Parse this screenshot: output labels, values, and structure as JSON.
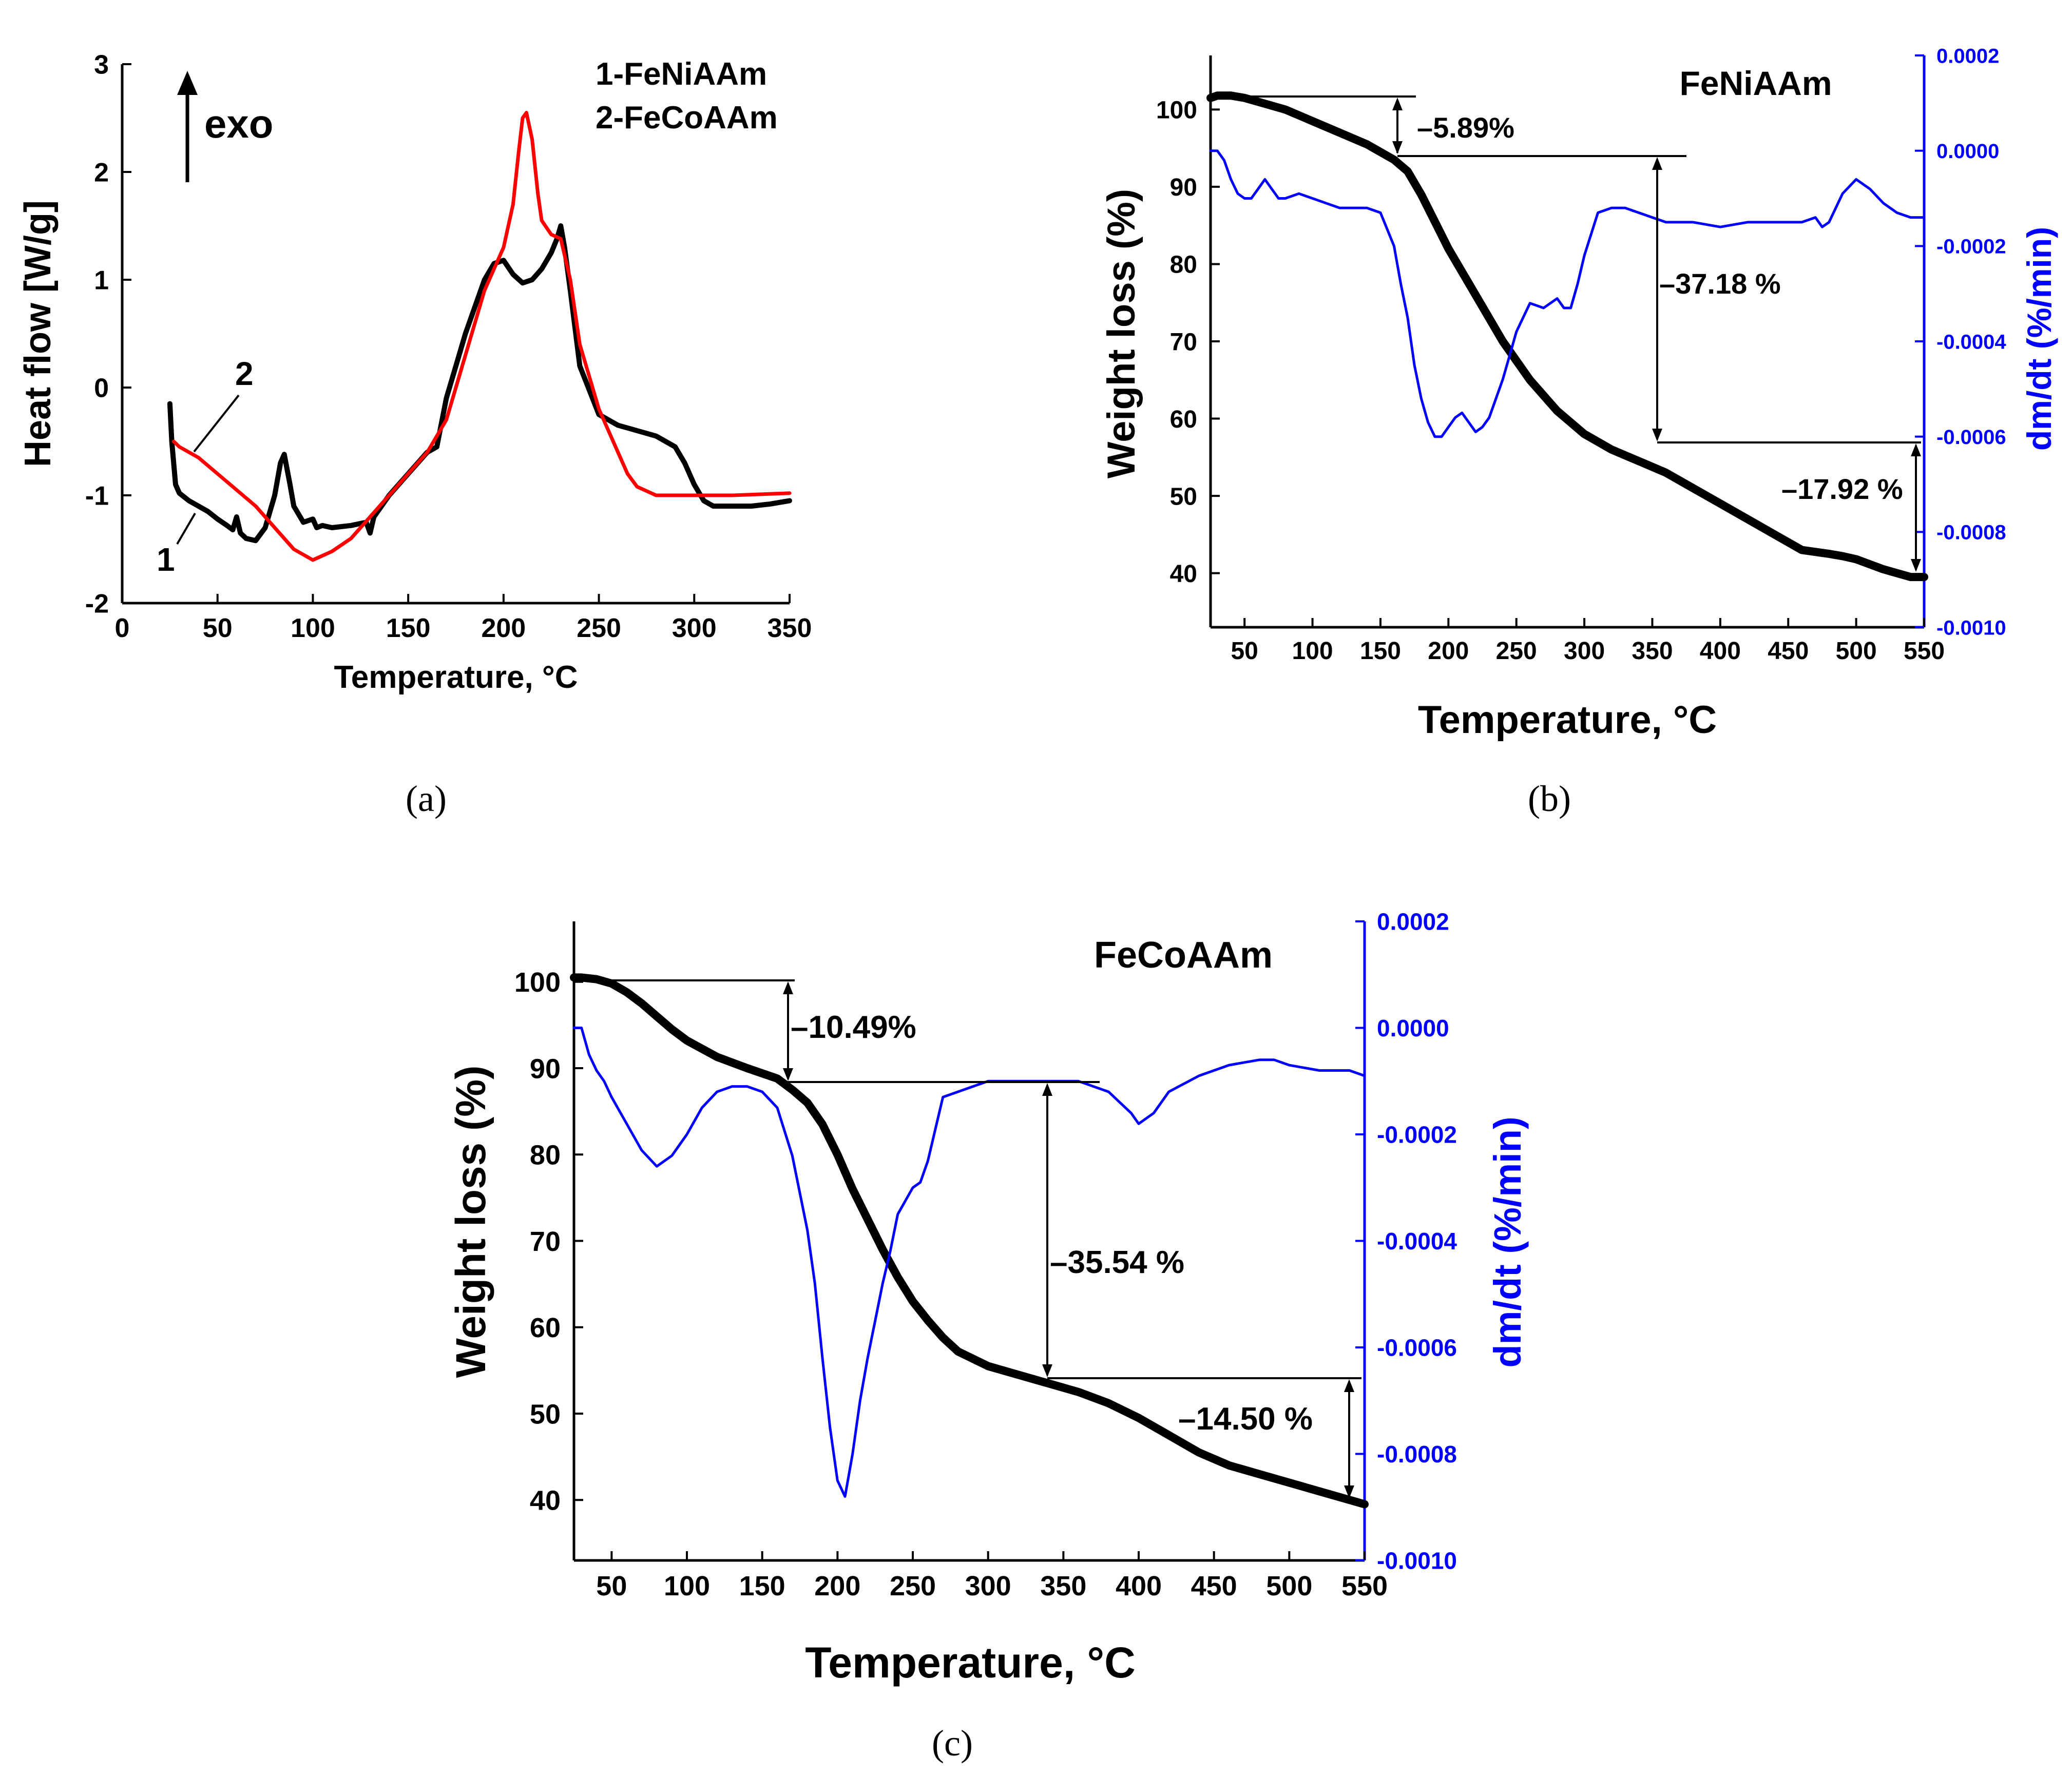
{
  "panels": [
    {
      "id": "a",
      "caption": "(a)",
      "chart_data": {
        "type": "line",
        "xlabel": "Temperature, °C",
        "ylabel": "Heat flow [W/g]",
        "xlim": [
          0,
          350
        ],
        "ylim": [
          -2,
          3
        ],
        "xticks": [
          "0",
          "50",
          "100",
          "150",
          "200",
          "250",
          "300",
          "350"
        ],
        "yticks": [
          "-2",
          "-1",
          "0",
          "1",
          "2",
          "3"
        ],
        "annotation_exo": "exo",
        "legend": [
          "1-FeNiAAm",
          "2-FeCoAAm"
        ],
        "curve_labels": [
          "1",
          "2"
        ],
        "series": [
          {
            "name": "1-FeNiAAm",
            "color": "#000000",
            "x": [
              25,
              26,
              28,
              30,
              35,
              40,
              45,
              50,
              55,
              58,
              60,
              62,
              65,
              70,
              75,
              80,
              83,
              85,
              88,
              90,
              95,
              100,
              102,
              105,
              110,
              120,
              128,
              130,
              132,
              140,
              150,
              160,
              165,
              170,
              180,
              190,
              195,
              200,
              205,
              210,
              215,
              220,
              225,
              228,
              230,
              232,
              235,
              240,
              250,
              260,
              270,
              280,
              290,
              295,
              300,
              305,
              310,
              320,
              330,
              340,
              350
            ],
            "y": [
              -0.15,
              -0.5,
              -0.9,
              -0.98,
              -1.05,
              -1.1,
              -1.15,
              -1.22,
              -1.28,
              -1.32,
              -1.2,
              -1.35,
              -1.4,
              -1.42,
              -1.3,
              -1.0,
              -0.7,
              -0.62,
              -0.9,
              -1.1,
              -1.25,
              -1.22,
              -1.3,
              -1.28,
              -1.3,
              -1.28,
              -1.25,
              -1.35,
              -1.2,
              -1.0,
              -0.8,
              -0.6,
              -0.55,
              -0.1,
              0.5,
              1.0,
              1.15,
              1.18,
              1.05,
              0.97,
              1.0,
              1.1,
              1.25,
              1.38,
              1.5,
              1.3,
              0.9,
              0.2,
              -0.25,
              -0.35,
              -0.4,
              -0.45,
              -0.55,
              -0.7,
              -0.9,
              -1.05,
              -1.1,
              -1.1,
              -1.1,
              -1.08,
              -1.05
            ]
          },
          {
            "name": "2-FeCoAAm",
            "color": "#ff0000",
            "x": [
              27,
              30,
              40,
              50,
              60,
              70,
              80,
              90,
              100,
              110,
              120,
              130,
              140,
              150,
              160,
              170,
              180,
              190,
              195,
              200,
              205,
              208,
              210,
              212,
              215,
              218,
              220,
              225,
              230,
              235,
              240,
              250,
              260,
              265,
              270,
              280,
              290,
              300,
              320,
              350
            ],
            "y": [
              -0.5,
              -0.55,
              -0.65,
              -0.8,
              -0.95,
              -1.1,
              -1.3,
              -1.5,
              -1.6,
              -1.52,
              -1.4,
              -1.2,
              -1.0,
              -0.8,
              -0.6,
              -0.3,
              0.3,
              0.9,
              1.1,
              1.3,
              1.7,
              2.2,
              2.5,
              2.55,
              2.3,
              1.8,
              1.55,
              1.42,
              1.38,
              1.0,
              0.4,
              -0.2,
              -0.6,
              -0.8,
              -0.92,
              -1.0,
              -1.0,
              -1.0,
              -1.0,
              -0.98
            ]
          }
        ]
      }
    },
    {
      "id": "b",
      "caption": "(b)",
      "chart_data": {
        "type": "line",
        "title": "FeNiAAm",
        "xlabel": "Temperature, °C",
        "ylabel": "Weight loss (%)",
        "ylabel_right": "dm/dt (%/min)",
        "xlim": [
          25,
          550
        ],
        "ylim": [
          33,
          107
        ],
        "ylim_right": [
          -0.001,
          0.0002
        ],
        "xticks": [
          "50",
          "100",
          "150",
          "200",
          "250",
          "300",
          "350",
          "400",
          "450",
          "500",
          "550"
        ],
        "yticks": [
          "40",
          "50",
          "60",
          "70",
          "80",
          "90",
          "100"
        ],
        "yticks_right": [
          "0.0002",
          "0.0000",
          "-0.0002",
          "-0.0004",
          "-0.0006",
          "-0.0008",
          "-0.0010"
        ],
        "annotations": [
          "–5.89%",
          "–37.18 %",
          "–17.92 %"
        ],
        "series": [
          {
            "name": "Weight loss",
            "color": "#000000",
            "x": [
              25,
              30,
              40,
              50,
              60,
              80,
              100,
              120,
              140,
              160,
              170,
              180,
              190,
              200,
              220,
              240,
              260,
              280,
              300,
              310,
              320,
              340,
              360,
              380,
              400,
              420,
              440,
              460,
              480,
              490,
              500,
              520,
              540,
              550
            ],
            "y": [
              101.5,
              101.8,
              101.8,
              101.5,
              101,
              100,
              98.5,
              97,
              95.5,
              93.5,
              92,
              89,
              85.5,
              82,
              76,
              70,
              65,
              61,
              58,
              57,
              56,
              54.5,
              53,
              51,
              49,
              47,
              45,
              43,
              42.5,
              42.2,
              41.8,
              40.5,
              39.5,
              39.5
            ]
          },
          {
            "name": "dm/dt",
            "color": "#0000ff",
            "axis": "right",
            "x": [
              25,
              30,
              35,
              40,
              45,
              50,
              55,
              60,
              65,
              70,
              75,
              80,
              90,
              100,
              110,
              120,
              130,
              140,
              150,
              160,
              165,
              170,
              175,
              180,
              185,
              190,
              195,
              200,
              205,
              210,
              215,
              220,
              225,
              230,
              235,
              240,
              245,
              250,
              260,
              270,
              280,
              285,
              290,
              295,
              300,
              310,
              320,
              330,
              340,
              350,
              360,
              380,
              400,
              420,
              440,
              460,
              470,
              475,
              480,
              490,
              500,
              510,
              520,
              530,
              540,
              550
            ],
            "y": [
              0.0,
              0.0,
              -2e-05,
              -6e-05,
              -9e-05,
              -0.0001,
              -0.0001,
              -8e-05,
              -6e-05,
              -8e-05,
              -0.0001,
              -0.0001,
              -9e-05,
              -0.0001,
              -0.00011,
              -0.00012,
              -0.00012,
              -0.00012,
              -0.00013,
              -0.0002,
              -0.00028,
              -0.00035,
              -0.00045,
              -0.00052,
              -0.00057,
              -0.0006,
              -0.0006,
              -0.00058,
              -0.00056,
              -0.00055,
              -0.00057,
              -0.00059,
              -0.00058,
              -0.00056,
              -0.00052,
              -0.00048,
              -0.00043,
              -0.00038,
              -0.00032,
              -0.00033,
              -0.00031,
              -0.00033,
              -0.00033,
              -0.00028,
              -0.00022,
              -0.00013,
              -0.00012,
              -0.00012,
              -0.00013,
              -0.00014,
              -0.00015,
              -0.00015,
              -0.00016,
              -0.00015,
              -0.00015,
              -0.00015,
              -0.00014,
              -0.00016,
              -0.00015,
              -9e-05,
              -6e-05,
              -8e-05,
              -0.00011,
              -0.00013,
              -0.00014,
              -0.00014
            ]
          }
        ]
      }
    },
    {
      "id": "c",
      "caption": "(c)",
      "chart_data": {
        "type": "line",
        "title": "FeCoAAm",
        "xlabel": "Temperature, °C",
        "ylabel": "Weight loss (%)",
        "ylabel_right": "dm/dt (%/min)",
        "xlim": [
          25,
          550
        ],
        "ylim": [
          33,
          107
        ],
        "ylim_right": [
          -0.001,
          0.0002
        ],
        "xticks": [
          "50",
          "100",
          "150",
          "200",
          "250",
          "300",
          "350",
          "400",
          "450",
          "500",
          "550"
        ],
        "yticks": [
          "40",
          "50",
          "60",
          "70",
          "80",
          "90",
          "100"
        ],
        "yticks_right": [
          "0.0002",
          "0.0000",
          "-0.0002",
          "-0.0004",
          "-0.0006",
          "-0.0008",
          "-0.0010"
        ],
        "annotations": [
          "–10.49%",
          "–35.54 %",
          "–14.50 %"
        ],
        "series": [
          {
            "name": "Weight loss",
            "color": "#000000",
            "x": [
              25,
              30,
              40,
              50,
              60,
              70,
              80,
              90,
              100,
              120,
              140,
              160,
              170,
              180,
              190,
              200,
              210,
              220,
              230,
              240,
              250,
              260,
              270,
              280,
              300,
              320,
              340,
              360,
              380,
              400,
              420,
              440,
              460,
              480,
              500,
              520,
              540,
              550
            ],
            "y": [
              100.5,
              100.5,
              100.3,
              99.8,
              98.8,
              97.5,
              96,
              94.5,
              93.2,
              91.3,
              90,
              88.8,
              87.5,
              86,
              83.5,
              80,
              76,
              72.5,
              69,
              65.8,
              63,
              60.8,
              58.8,
              57.2,
              55.5,
              54.5,
              53.5,
              52.5,
              51.2,
              49.5,
              47.5,
              45.5,
              44,
              43,
              42,
              41,
              40,
              39.5
            ]
          },
          {
            "name": "dm/dt",
            "color": "#0000ff",
            "axis": "right",
            "x": [
              25,
              30,
              35,
              40,
              45,
              50,
              60,
              70,
              80,
              90,
              100,
              110,
              120,
              130,
              140,
              150,
              160,
              170,
              180,
              185,
              190,
              195,
              200,
              205,
              210,
              215,
              220,
              225,
              230,
              235,
              240,
              250,
              255,
              260,
              270,
              280,
              290,
              300,
              320,
              340,
              360,
              380,
              395,
              400,
              410,
              420,
              440,
              460,
              480,
              490,
              500,
              520,
              540,
              550
            ],
            "y": [
              0.0,
              0.0,
              -5e-05,
              -8e-05,
              -0.0001,
              -0.00013,
              -0.00018,
              -0.00023,
              -0.00026,
              -0.00024,
              -0.0002,
              -0.00015,
              -0.00012,
              -0.00011,
              -0.00011,
              -0.00012,
              -0.00015,
              -0.00024,
              -0.00038,
              -0.00048,
              -0.00062,
              -0.00075,
              -0.00085,
              -0.00088,
              -0.0008,
              -0.0007,
              -0.00062,
              -0.00055,
              -0.00048,
              -0.00042,
              -0.00035,
              -0.0003,
              -0.00029,
              -0.00025,
              -0.00013,
              -0.00012,
              -0.00011,
              -0.0001,
              -0.0001,
              -0.0001,
              -0.0001,
              -0.00012,
              -0.00016,
              -0.00018,
              -0.00016,
              -0.00012,
              -9e-05,
              -7e-05,
              -6e-05,
              -6e-05,
              -7e-05,
              -8e-05,
              -8e-05,
              -9e-05
            ]
          }
        ]
      }
    }
  ]
}
